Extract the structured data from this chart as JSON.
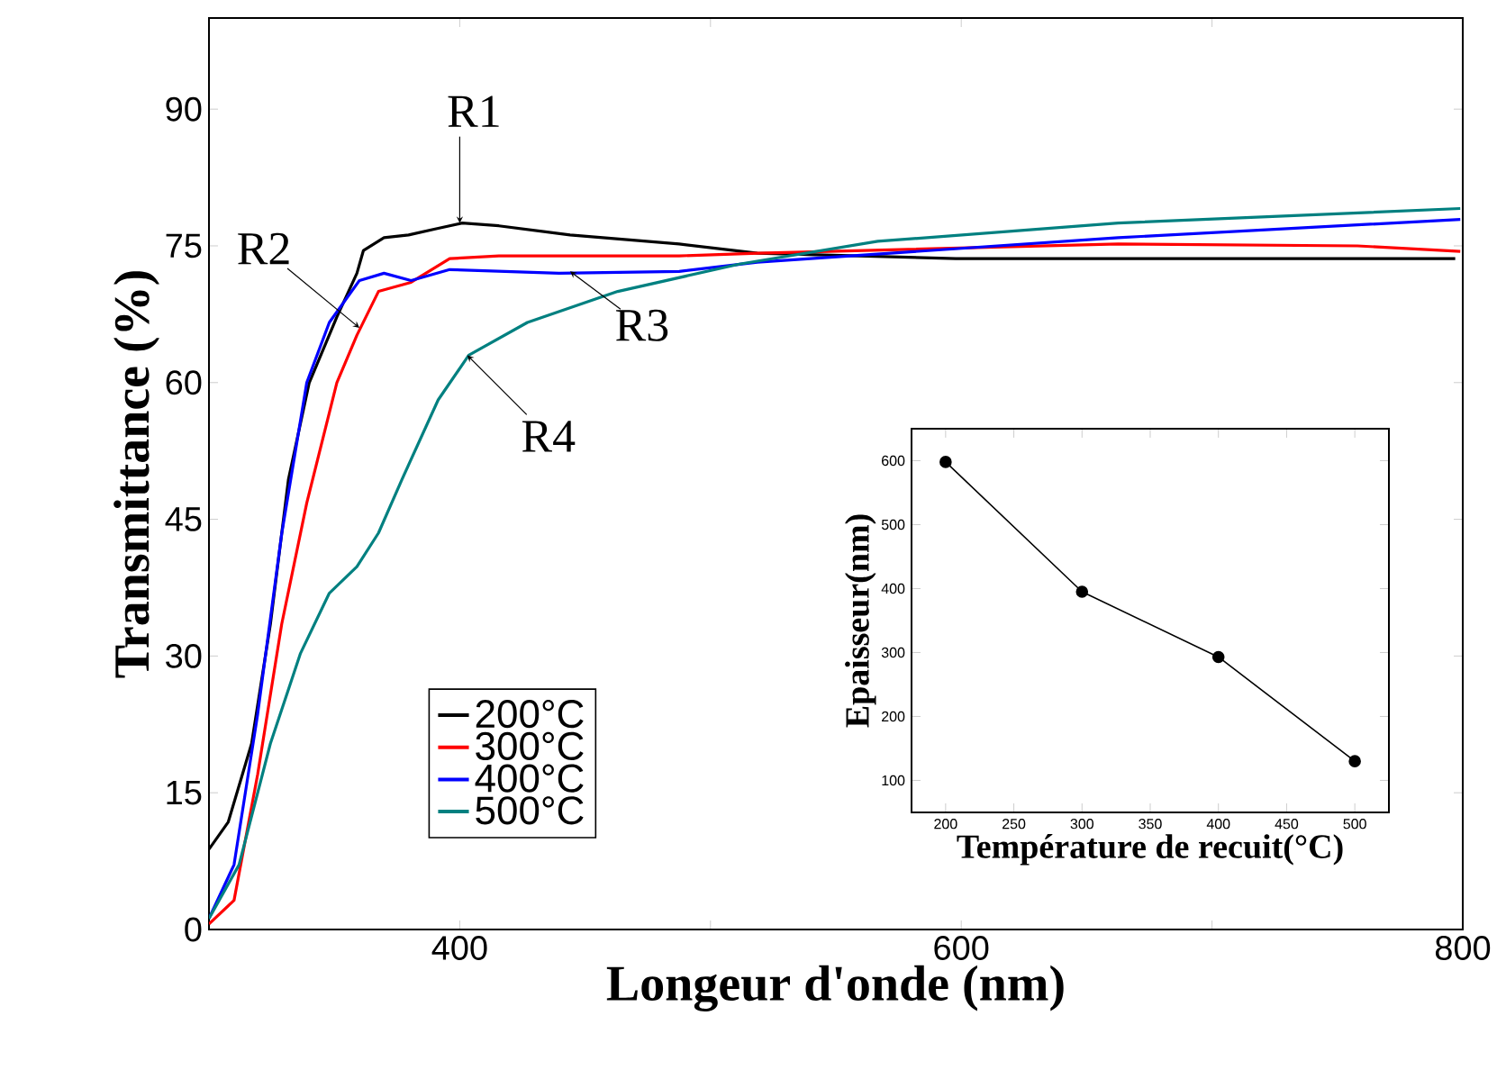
{
  "chart_data": [
    {
      "type": "line",
      "xlabel": "Longeur d'onde (nm)",
      "ylabel": "Transmittance (%)",
      "xlim": [
        300,
        800
      ],
      "ylim": [
        0,
        100
      ],
      "xticks": [
        {
          "value": 300,
          "label": null
        },
        400,
        {
          "value": 500,
          "label": null
        },
        600,
        {
          "value": 700,
          "label": null
        },
        800
      ],
      "yticks": [
        0,
        15,
        30,
        45,
        60,
        75,
        90
      ],
      "legend": "bottom",
      "series": [
        {
          "name": "200°C",
          "color": "#000000",
          "x": [
            300,
            307.7,
            317,
            324.5,
            331.7,
            340,
            351,
            359,
            361.6,
            369.8,
            379.6,
            391,
            401,
            415.6,
            444,
            487.5,
            518.7,
            597.8,
            700,
            797
          ],
          "values": [
            8.8,
            11.8,
            20.4,
            33.5,
            49.4,
            60,
            67.2,
            72,
            74.5,
            75.9,
            76.2,
            76.9,
            77.5,
            77.2,
            76.2,
            75.2,
            74.2,
            73.6,
            73.6,
            73.6
          ]
        },
        {
          "name": "300°C",
          "color": "#ff0000",
          "x": [
            300,
            310,
            319.4,
            329,
            339,
            351,
            359,
            367.6,
            380.6,
            396,
            415.6,
            487.5,
            519,
            662.6,
            758,
            799
          ],
          "values": [
            0.6,
            3.2,
            17,
            33.5,
            46.8,
            60,
            65.2,
            70,
            71,
            73.6,
            73.9,
            73.9,
            74.2,
            75.2,
            75,
            74.4
          ]
        },
        {
          "name": "400°C",
          "color": "#0000ff",
          "x": [
            300,
            310,
            319.4,
            329,
            339,
            348,
            360,
            369.8,
            380.6,
            396,
            439.6,
            487.5,
            518.7,
            662.6,
            799
          ],
          "values": [
            1.2,
            7.1,
            23.6,
            43.4,
            60,
            66.6,
            71.2,
            72,
            71.2,
            72.4,
            72,
            72.2,
            73.2,
            75.9,
            77.9
          ]
        },
        {
          "name": "500°C",
          "color": "#008080",
          "x": [
            300,
            312,
            324.5,
            336.5,
            348,
            359,
            367.6,
            377,
            391.4,
            403.6,
            427,
            463,
            511.5,
            566.7,
            662.6,
            799
          ],
          "values": [
            1.2,
            7.1,
            20.4,
            30.3,
            36.9,
            39.8,
            43.5,
            49.4,
            58.1,
            63,
            66.6,
            70,
            73,
            75.5,
            77.5,
            79.1
          ]
        }
      ],
      "annotations": [
        {
          "text": "R1",
          "x": 400,
          "y": 77.5
        },
        {
          "text": "R2",
          "x": 360,
          "y": 66
        },
        {
          "text": "R3",
          "x": 444,
          "y": 72.2
        },
        {
          "text": "R4",
          "x": 403,
          "y": 63
        }
      ]
    },
    {
      "type": "line",
      "xlabel": "Température de recuit(°C)",
      "ylabel": "Epaisseur(nm)",
      "xlim": [
        175,
        525
      ],
      "ylim": [
        50,
        650
      ],
      "xticks": [
        200,
        250,
        300,
        350,
        400,
        450,
        500
      ],
      "yticks": [
        100,
        200,
        300,
        400,
        500,
        600
      ],
      "marker": "circle",
      "series": [
        {
          "color": "#000000",
          "x": [
            200,
            300,
            400,
            500
          ],
          "values": [
            598,
            395,
            293,
            130
          ]
        }
      ]
    }
  ]
}
